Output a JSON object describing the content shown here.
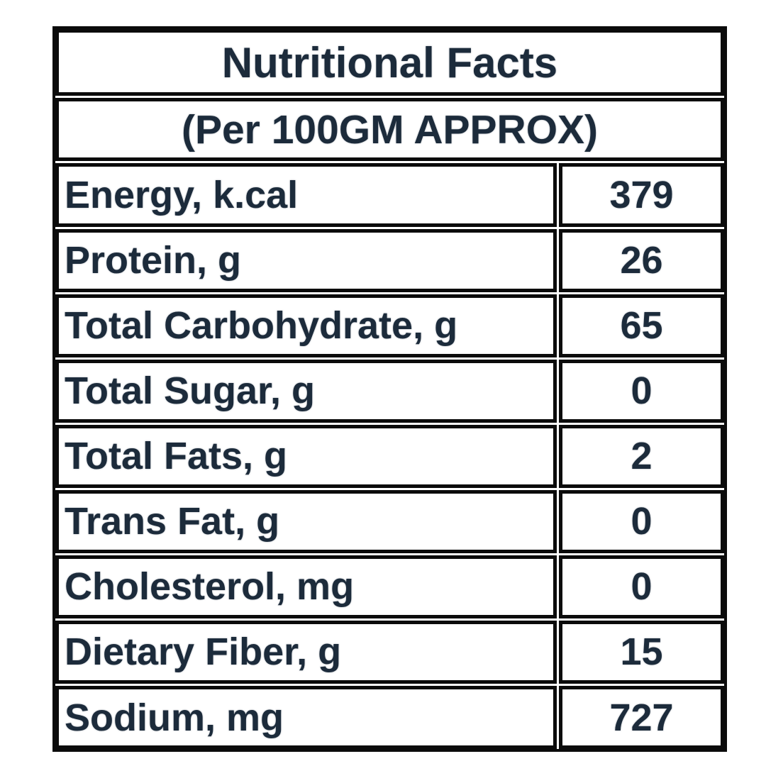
{
  "table": {
    "title": "Nutritional Facts",
    "subtitle": "(Per 100GM APPROX)",
    "rows": [
      {
        "label": "Energy, k.cal",
        "value": "379"
      },
      {
        "label": "Protein, g",
        "value": "26"
      },
      {
        "label": "Total Carbohydrate, g",
        "value": "65"
      },
      {
        "label": "Total Sugar, g",
        "value": "0"
      },
      {
        "label": "Total Fats, g",
        "value": "2"
      },
      {
        "label": "Trans Fat, g",
        "value": "0"
      },
      {
        "label": "Cholesterol, mg",
        "value": "0"
      },
      {
        "label": "Dietary Fiber, g",
        "value": "15"
      },
      {
        "label": "Sodium, mg",
        "value": "727"
      }
    ],
    "colors": {
      "text": "#1c2b3b",
      "border": "#0b0b0b",
      "background": "#ffffff"
    }
  }
}
